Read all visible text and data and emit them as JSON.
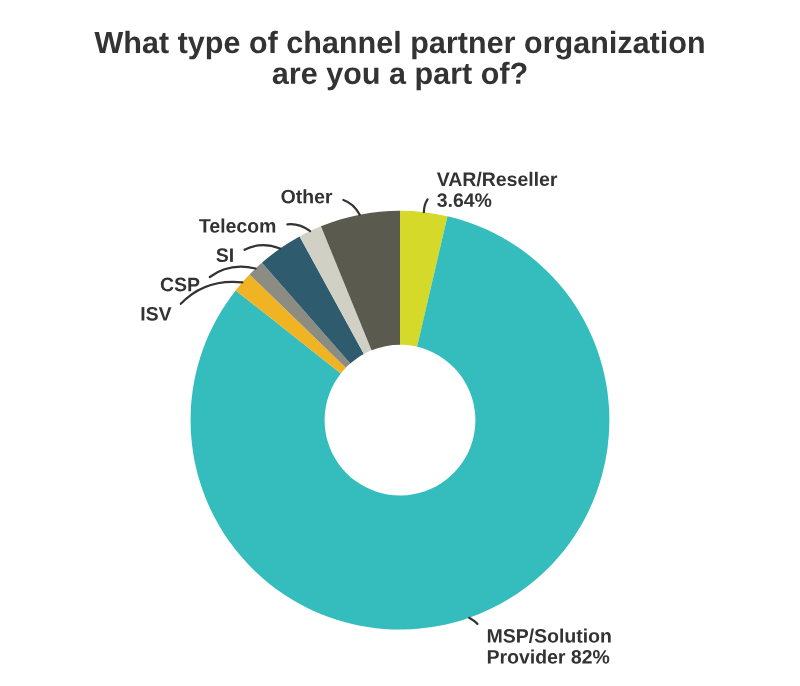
{
  "chart_data": {
    "type": "donut",
    "title": "What type of channel partner organization are you a part of?",
    "categories": [
      "VAR/Reseller",
      "MSP/Solution Provider",
      "ISV",
      "CSP",
      "SI",
      "Telecom",
      "Other"
    ],
    "values": [
      3.64,
      82,
      1.6,
      1.3,
      3.5,
      1.8,
      6.16
    ],
    "value_labels": [
      "3.64%",
      "82%",
      null,
      null,
      null,
      null,
      null
    ],
    "colors": [
      "#d4d92a",
      "#35bdbd",
      "#f0b323",
      "#8c8c82",
      "#2e5c6e",
      "#d0d0c4",
      "#5a5a4e"
    ],
    "legend": false
  }
}
